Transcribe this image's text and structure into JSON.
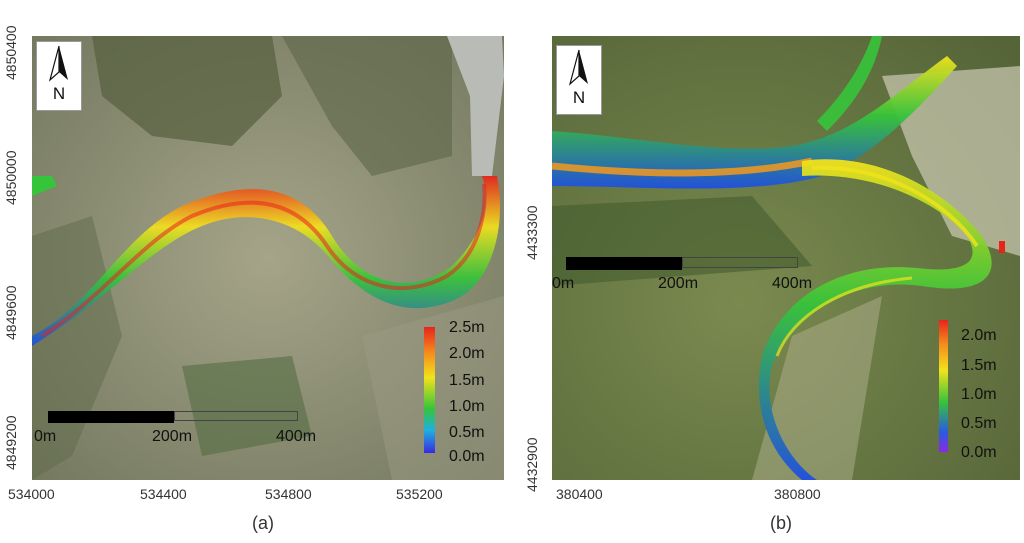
{
  "panels": [
    {
      "id": "a",
      "caption": "(a)",
      "x_ticks": [
        "534000",
        "534400",
        "534800",
        "535200"
      ],
      "y_ticks": [
        "4850400",
        "4850000",
        "4849600",
        "4849200"
      ],
      "north_label": "N",
      "legend": {
        "labels": [
          "2.5m",
          "2.0m",
          "1.5m",
          "1.0m",
          "0.5m",
          "0.0m"
        ],
        "min": 0.0,
        "max": 2.5,
        "unit": "m"
      },
      "scale_bar": {
        "labels": [
          "0m",
          "200m",
          "400m"
        ]
      }
    },
    {
      "id": "b",
      "caption": "(b)",
      "x_ticks": [
        "380400",
        "380800"
      ],
      "y_ticks": [
        "4433300",
        "4432900"
      ],
      "north_label": "N",
      "legend": {
        "labels": [
          "2.0m",
          "1.5m",
          "1.0m",
          "0.5m",
          "0.0m"
        ],
        "min": 0.0,
        "max": 2.0,
        "unit": "m"
      },
      "scale_bar": {
        "labels": [
          "0m",
          "200m",
          "400m"
        ]
      }
    }
  ],
  "colors": {
    "terrain_a": "#8f8f73",
    "terrain_b": "#6f7f4a",
    "depth_deep": "#e8231c",
    "depth_mid": "#f2e21c",
    "depth_low": "#36c43a",
    "depth_shallow": "#1f4fe0",
    "scale_bar": "#000000"
  }
}
